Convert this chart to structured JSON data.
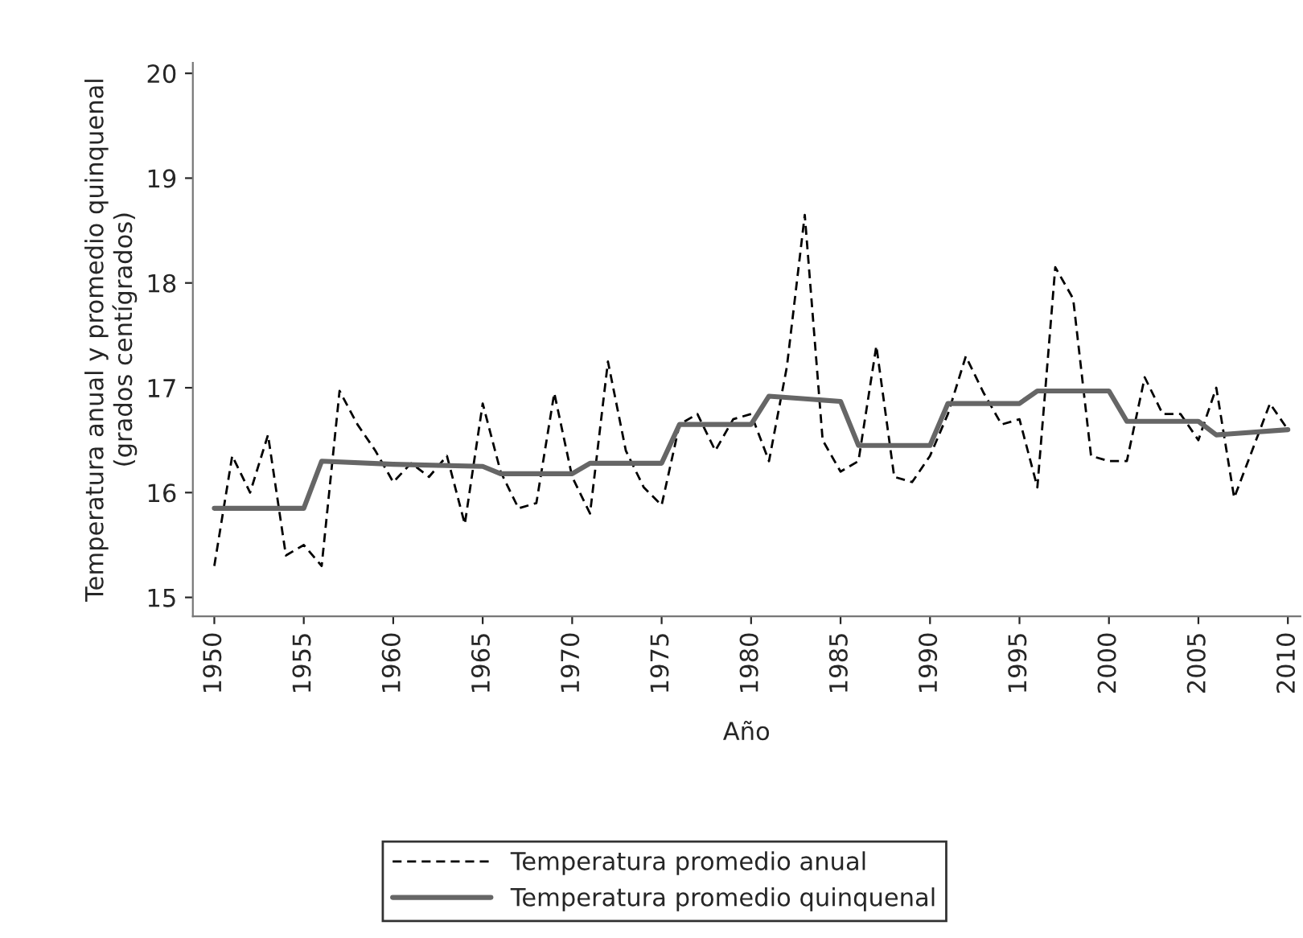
{
  "chart_data": {
    "type": "line",
    "xlabel": "Año",
    "ylabel": "Temperatura anual y promedio quinquenal\n(grados centígrados)",
    "xlim": [
      1948.8,
      2010.7
    ],
    "xticks": [
      1950,
      1955,
      1960,
      1965,
      1970,
      1975,
      1980,
      1985,
      1990,
      1995,
      2000,
      2005,
      2010
    ],
    "ylim": [
      14.82,
      20.1
    ],
    "yticks": [
      15,
      16,
      17,
      18,
      19,
      20
    ],
    "grid": false,
    "legend": "bottom",
    "marker": "none",
    "series": [
      {
        "name": "Temperatura promedio anual",
        "color": "#000000",
        "line_style": "dashed",
        "x": [
          1950,
          1951,
          1952,
          1953,
          1954,
          1955,
          1956,
          1957,
          1958,
          1959,
          1960,
          1961,
          1962,
          1963,
          1964,
          1965,
          1966,
          1967,
          1968,
          1969,
          1970,
          1971,
          1972,
          1973,
          1974,
          1975,
          1976,
          1977,
          1978,
          1979,
          1980,
          1981,
          1982,
          1983,
          1984,
          1985,
          1986,
          1987,
          1988,
          1989,
          1990,
          1991,
          1992,
          1993,
          1994,
          1995,
          1996,
          1997,
          1998,
          1999,
          2000,
          2001,
          2002,
          2003,
          2004,
          2005,
          2006,
          2007,
          2008,
          2009,
          2010
        ],
        "values": [
          15.3,
          16.35,
          16.0,
          16.55,
          15.4,
          15.5,
          15.3,
          16.97,
          16.65,
          16.4,
          16.1,
          16.28,
          16.15,
          16.35,
          15.7,
          16.85,
          16.2,
          15.85,
          15.9,
          16.95,
          16.15,
          15.8,
          17.25,
          16.4,
          16.05,
          15.88,
          16.65,
          16.75,
          16.4,
          16.7,
          16.75,
          16.3,
          17.2,
          18.65,
          16.5,
          16.2,
          16.3,
          17.4,
          16.15,
          16.1,
          16.35,
          16.75,
          17.3,
          16.95,
          16.65,
          16.7,
          16.05,
          18.15,
          17.85,
          16.35,
          16.3,
          16.3,
          17.1,
          16.75,
          16.75,
          16.5,
          17.0,
          15.95,
          16.4,
          16.85,
          16.6
        ]
      },
      {
        "name": "Temperatura promedio quinquenal",
        "color": "#666666",
        "line_style": "solid",
        "x": [
          1950,
          1955,
          1956,
          1960,
          1965,
          1966,
          1970,
          1971,
          1975,
          1976,
          1980,
          1981,
          1985,
          1986,
          1990,
          1991,
          1995,
          1996,
          2000,
          2001,
          2005,
          2006,
          2010
        ],
        "values": [
          15.85,
          15.85,
          16.3,
          16.27,
          16.25,
          16.18,
          16.18,
          16.28,
          16.28,
          16.65,
          16.65,
          16.92,
          16.87,
          16.45,
          16.45,
          16.85,
          16.85,
          16.97,
          16.97,
          16.68,
          16.68,
          16.55,
          16.6
        ]
      }
    ]
  }
}
